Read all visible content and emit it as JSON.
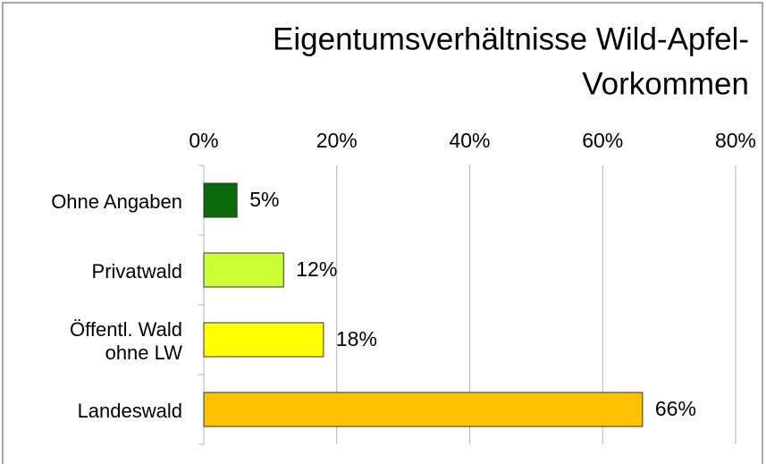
{
  "chart_data": {
    "type": "bar",
    "orientation": "horizontal",
    "title": [
      "Eigentumsverhältnisse Wild-Apfel-",
      "Vorkommen"
    ],
    "categories": [
      "Ohne Angaben",
      "Privatwald",
      "Öffentl. Wald\nohne LW",
      "Landeswald"
    ],
    "values": [
      5,
      12,
      18,
      66
    ],
    "value_labels": [
      "5%",
      "12%",
      "18%",
      "66%"
    ],
    "colors": [
      "#0b6b0b",
      "#ccff33",
      "#ffff00",
      "#ffc000"
    ],
    "xlim": [
      0,
      80
    ],
    "xticks": [
      {
        "value": 0,
        "label": "0%"
      },
      {
        "value": 20,
        "label": "20%"
      },
      {
        "value": 40,
        "label": "40%"
      },
      {
        "value": 60,
        "label": "60%"
      },
      {
        "value": 80,
        "label": "80%"
      }
    ],
    "grid": true
  }
}
